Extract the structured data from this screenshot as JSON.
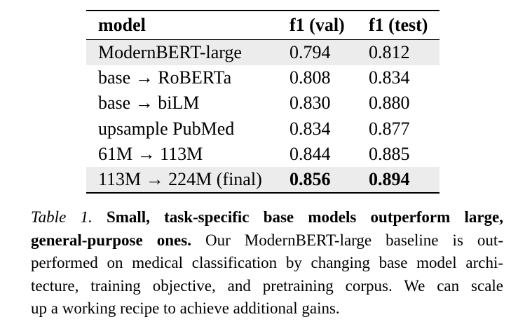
{
  "page": {
    "background": "#ffffff",
    "text_color": "#000000",
    "rule_color": "#000000"
  },
  "table": {
    "shade_color": "#ececec",
    "columns": [
      "model",
      "f1 (val)",
      "f1 (test)"
    ],
    "rows": [
      {
        "model": "ModernBERT-large",
        "f1_val": "0.794",
        "f1_test": "0.812",
        "shaded": true,
        "bold_values": false
      },
      {
        "model": "base → RoBERTa",
        "f1_val": "0.808",
        "f1_test": "0.834",
        "shaded": false,
        "bold_values": false
      },
      {
        "model": "base → biLM",
        "f1_val": "0.830",
        "f1_test": "0.880",
        "shaded": false,
        "bold_values": false
      },
      {
        "model": "upsample PubMed",
        "f1_val": "0.834",
        "f1_test": "0.877",
        "shaded": false,
        "bold_values": false
      },
      {
        "model": "61M → 113M",
        "f1_val": "0.844",
        "f1_test": "0.885",
        "shaded": false,
        "bold_values": false
      },
      {
        "model": "113M → 224M (final)",
        "f1_val": "0.856",
        "f1_test": "0.894",
        "shaded": true,
        "bold_values": true
      }
    ]
  },
  "caption": {
    "label": "Table 1.",
    "lines": [
      [
        {
          "text": "Table 1. ",
          "style": "italic"
        },
        {
          "text": "Small, task-specific base models outperform large,",
          "style": "bold"
        }
      ],
      [
        {
          "text": "general-purpose ones.",
          "style": "bold"
        },
        {
          "text": " Our ModernBERT-large baseline is out-",
          "style": "normal"
        }
      ],
      [
        {
          "text": "performed on medical classification by changing base model archi-",
          "style": "normal"
        }
      ],
      [
        {
          "text": "tecture, training objective, and pretraining corpus. We can scale",
          "style": "normal"
        }
      ],
      [
        {
          "text": "up a working recipe to achieve additional gains.",
          "style": "normal"
        }
      ]
    ],
    "full_text": "Table 1. Small, task-specific base models outperform large, general-purpose ones. Our ModernBERT-large baseline is outperformed on medical classification by changing base model architecture, training objective, and pretraining corpus. We can scale up a working recipe to achieve additional gains."
  }
}
